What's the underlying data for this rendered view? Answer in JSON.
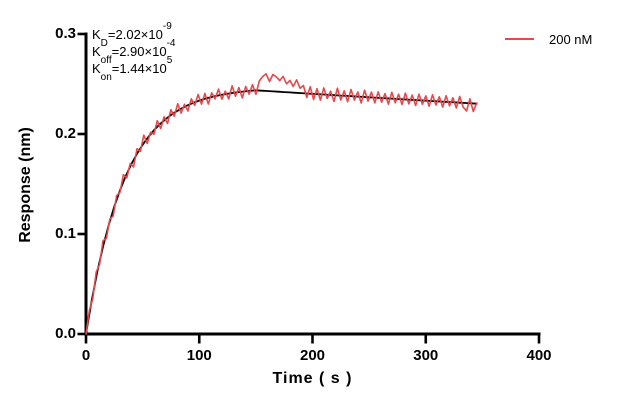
{
  "colors": {
    "background": "#ffffff",
    "axis": "#000000",
    "text": "#000000",
    "series_red": "#e8474b",
    "series_fit": "#000000"
  },
  "chart_data": {
    "type": "line",
    "title": "",
    "xlabel": "Time ( s )",
    "ylabel": "Response (nm)",
    "xlim": [
      0,
      400
    ],
    "ylim": [
      0,
      0.3
    ],
    "grid": false,
    "xtick_values": [
      0,
      100,
      200,
      300,
      400
    ],
    "xtick_labels": [
      "0",
      "100",
      "200",
      "300",
      "400"
    ],
    "ytick_values": [
      0,
      0.1,
      0.2,
      0.3
    ],
    "ytick_labels": [
      "0.0",
      "0.1",
      "0.2",
      "0.3"
    ],
    "legend": {
      "position": "top-right",
      "entries": [
        {
          "label": "200 nM",
          "color": "#e8474b"
        }
      ]
    },
    "annotations": [
      {
        "base": "K",
        "sub": "D",
        "mid": "=2.02×10",
        "sup": "-9"
      },
      {
        "base": "K",
        "sub": "off",
        "mid": "=2.90×10",
        "sup": "-4"
      },
      {
        "base": "K",
        "sub": "on",
        "mid": "=1.44×10",
        "sup": "5"
      }
    ],
    "series": [
      {
        "name": "200 nM",
        "role": "measured",
        "color": "#e8474b",
        "line_width": 1.6,
        "x0": 0,
        "dx": 3,
        "y": [
          0.0,
          0.0236,
          0.0355,
          0.0619,
          0.0697,
          0.0933,
          0.0956,
          0.1148,
          0.118,
          0.1383,
          0.1417,
          0.1593,
          0.1562,
          0.1705,
          0.1671,
          0.1852,
          0.1827,
          0.1988,
          0.1905,
          0.2018,
          0.1997,
          0.2133,
          0.2054,
          0.2172,
          0.2105,
          0.2242,
          0.2178,
          0.2302,
          0.2209,
          0.2297,
          0.223,
          0.2351,
          0.2286,
          0.2395,
          0.2299,
          0.2405,
          0.23,
          0.2411,
          0.2351,
          0.2449,
          0.2348,
          0.2428,
          0.2351,
          0.2482,
          0.2377,
          0.2464,
          0.2361,
          0.2475,
          0.2398,
          0.2493,
          0.2397,
          0.253,
          0.2575,
          0.2601,
          0.2525,
          0.2595,
          0.2571,
          0.2534,
          0.2576,
          0.2502,
          0.2536,
          0.2475,
          0.2542,
          0.2458,
          0.2485,
          0.2365,
          0.2472,
          0.2345,
          0.2453,
          0.2339,
          0.246,
          0.2355,
          0.2428,
          0.2325,
          0.2458,
          0.234,
          0.2431,
          0.2322,
          0.2445,
          0.2339,
          0.242,
          0.231,
          0.2439,
          0.2329,
          0.2419,
          0.2311,
          0.2422,
          0.2317,
          0.2404,
          0.2298,
          0.2417,
          0.2312,
          0.2398,
          0.2295,
          0.2409,
          0.2301,
          0.2389,
          0.2285,
          0.2398,
          0.2297,
          0.2381,
          0.2278,
          0.2392,
          0.2289,
          0.2372,
          0.2269,
          0.2383,
          0.2281,
          0.2362,
          0.226,
          0.2375,
          0.227,
          0.223,
          0.2352,
          0.2225,
          0.231
        ]
      },
      {
        "name": "fit",
        "role": "fitted-curve",
        "color": "#000000",
        "line_width": 1.8,
        "x0": 0,
        "dx": 5,
        "y": [
          0.0,
          0.0334,
          0.0623,
          0.0873,
          0.1089,
          0.1275,
          0.1437,
          0.1577,
          0.1698,
          0.1802,
          0.1892,
          0.197,
          0.2037,
          0.2096,
          0.2146,
          0.219,
          0.2227,
          0.226,
          0.2288,
          0.2313,
          0.2334,
          0.2352,
          0.2368,
          0.2381,
          0.2393,
          0.2403,
          0.2412,
          0.2419,
          0.2426,
          0.2432,
          0.2437,
          0.2433,
          0.243,
          0.2426,
          0.2423,
          0.2419,
          0.2416,
          0.2412,
          0.2409,
          0.2405,
          0.2402,
          0.2398,
          0.2395,
          0.2391,
          0.2388,
          0.2384,
          0.2381,
          0.2378,
          0.2374,
          0.2371,
          0.2367,
          0.2364,
          0.236,
          0.2357,
          0.2354,
          0.235,
          0.2347,
          0.2343,
          0.234,
          0.2337,
          0.2333,
          0.233,
          0.2327,
          0.2323,
          0.232,
          0.2317,
          0.2313,
          0.231,
          0.2307,
          0.2303
        ]
      }
    ]
  }
}
